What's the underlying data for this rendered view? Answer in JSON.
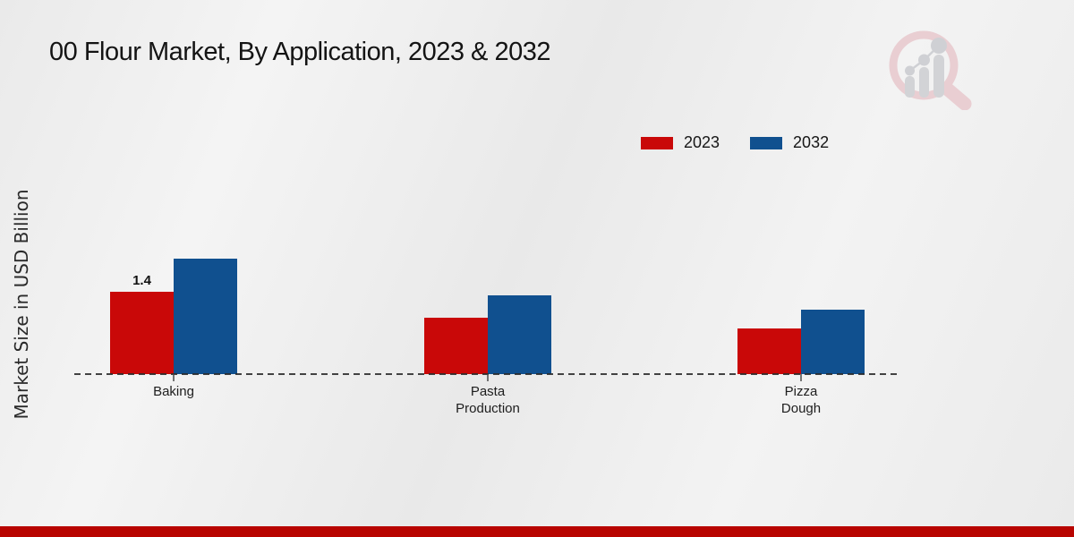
{
  "title": "00 Flour Market, By Application, 2023 & 2032",
  "y_axis_label": "Market Size in USD Billion",
  "branding": {
    "logo_icon": "magnifier-bar-chart-watermark-icon",
    "footer_bar_color": "#b80400"
  },
  "colors": {
    "series_2023": "#c90808",
    "series_2032": "#10508f",
    "baseline": "#2a2a2a",
    "watermark_pink": "#e9ced2",
    "watermark_gray": "#d2d3d6"
  },
  "chart_data": {
    "type": "bar",
    "title": "00 Flour Market, By Application, 2023 & 2032",
    "xlabel": "",
    "ylabel": "Market Size in USD Billion",
    "categories": [
      "Baking",
      "Pasta Production",
      "Pizza Dough"
    ],
    "tick_labels": [
      "Baking",
      "Pasta\nProduction",
      "Pizza\nDough"
    ],
    "series": [
      {
        "name": "2023",
        "color": "#c90808",
        "values": [
          1.4,
          0.95,
          0.78
        ],
        "data_labels": [
          "1.4",
          "",
          ""
        ]
      },
      {
        "name": "2032",
        "color": "#10508f",
        "values": [
          1.96,
          1.34,
          1.1
        ],
        "data_labels": [
          "",
          "",
          ""
        ]
      }
    ],
    "ylim": [
      0,
      2.2
    ],
    "grid": false,
    "axis_baseline_style": "dashed",
    "legend_position": "top-right"
  }
}
